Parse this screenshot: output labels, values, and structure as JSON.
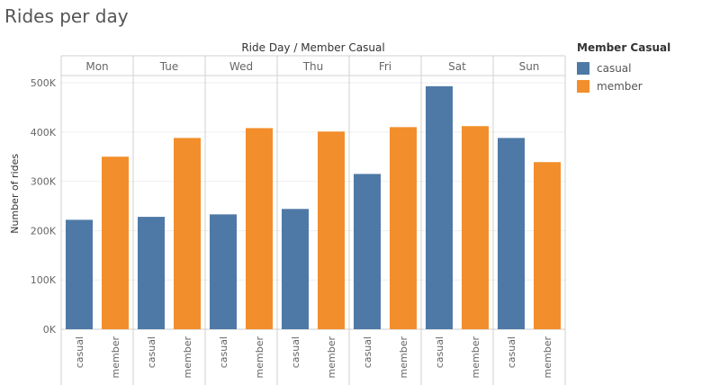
{
  "title": "Rides per day",
  "chart_data": {
    "type": "bar",
    "title": "Rides per day",
    "column_header": "Ride Day  /  Member Casual",
    "ylabel": "Number of rides",
    "ylim": [
      0,
      550000
    ],
    "yticks": [
      0,
      100000,
      200000,
      300000,
      400000,
      500000
    ],
    "ytick_labels": [
      "0K",
      "100K",
      "200K",
      "300K",
      "400K",
      "500K"
    ],
    "days": [
      "Mon",
      "Tue",
      "Wed",
      "Thu",
      "Fri",
      "Sat",
      "Sun"
    ],
    "subcategories": [
      "casual",
      "member"
    ],
    "series": [
      {
        "name": "casual",
        "color": "#4e79a7",
        "values": [
          222000,
          228000,
          233000,
          244000,
          315000,
          493000,
          388000
        ]
      },
      {
        "name": "member",
        "color": "#f28e2b",
        "values": [
          350000,
          388000,
          408000,
          401000,
          410000,
          412000,
          339000
        ]
      }
    ],
    "legend": {
      "title": "Member Casual",
      "position": "right"
    },
    "grid": true
  }
}
